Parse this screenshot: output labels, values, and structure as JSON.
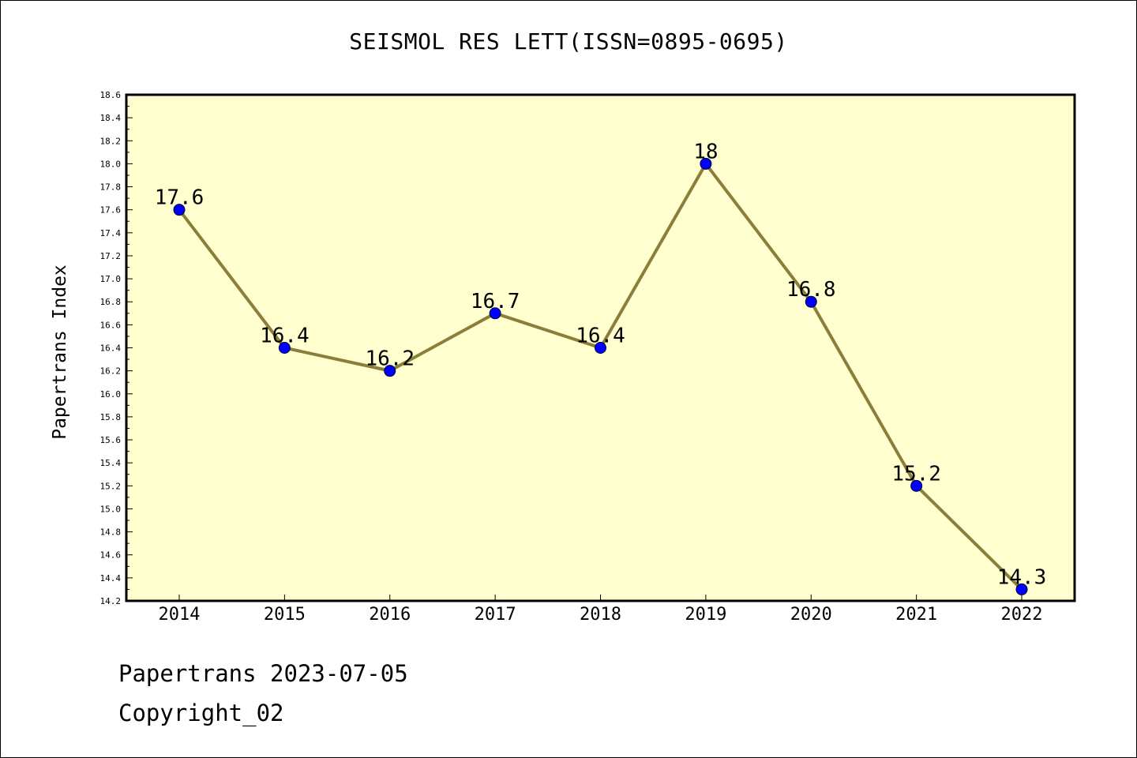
{
  "chart_data": {
    "type": "line",
    "title": "SEISMOL RES LETT(ISSN=0895-0695)",
    "ylabel": "Papertrans Index",
    "xlabel": "",
    "categories": [
      "2014",
      "2015",
      "2016",
      "2017",
      "2018",
      "2019",
      "2020",
      "2021",
      "2022"
    ],
    "values": [
      17.6,
      16.4,
      16.2,
      16.7,
      16.4,
      18.0,
      16.8,
      15.2,
      14.3
    ],
    "data_labels": [
      "17.6",
      "16.4",
      "16.2",
      "16.7",
      "16.4",
      "18",
      "16.8",
      "15.2",
      "14.3"
    ],
    "ylim": [
      14.2,
      18.6
    ],
    "yticks": [
      "14.2",
      "14.4",
      "14.6",
      "14.8",
      "15.0",
      "15.2",
      "15.4",
      "15.6",
      "15.8",
      "16.0",
      "16.2",
      "16.4",
      "16.6",
      "16.8",
      "17.0",
      "17.2",
      "17.4",
      "17.6",
      "17.8",
      "18.0",
      "18.2",
      "18.4",
      "18.6"
    ],
    "grid": false,
    "colors": {
      "plot_background": "#ffffd0",
      "line": "#8b7d3a",
      "marker": "#0000ff"
    }
  },
  "footer": {
    "source": "Papertrans 2023-07-05",
    "copyright": "Copyright_02"
  }
}
